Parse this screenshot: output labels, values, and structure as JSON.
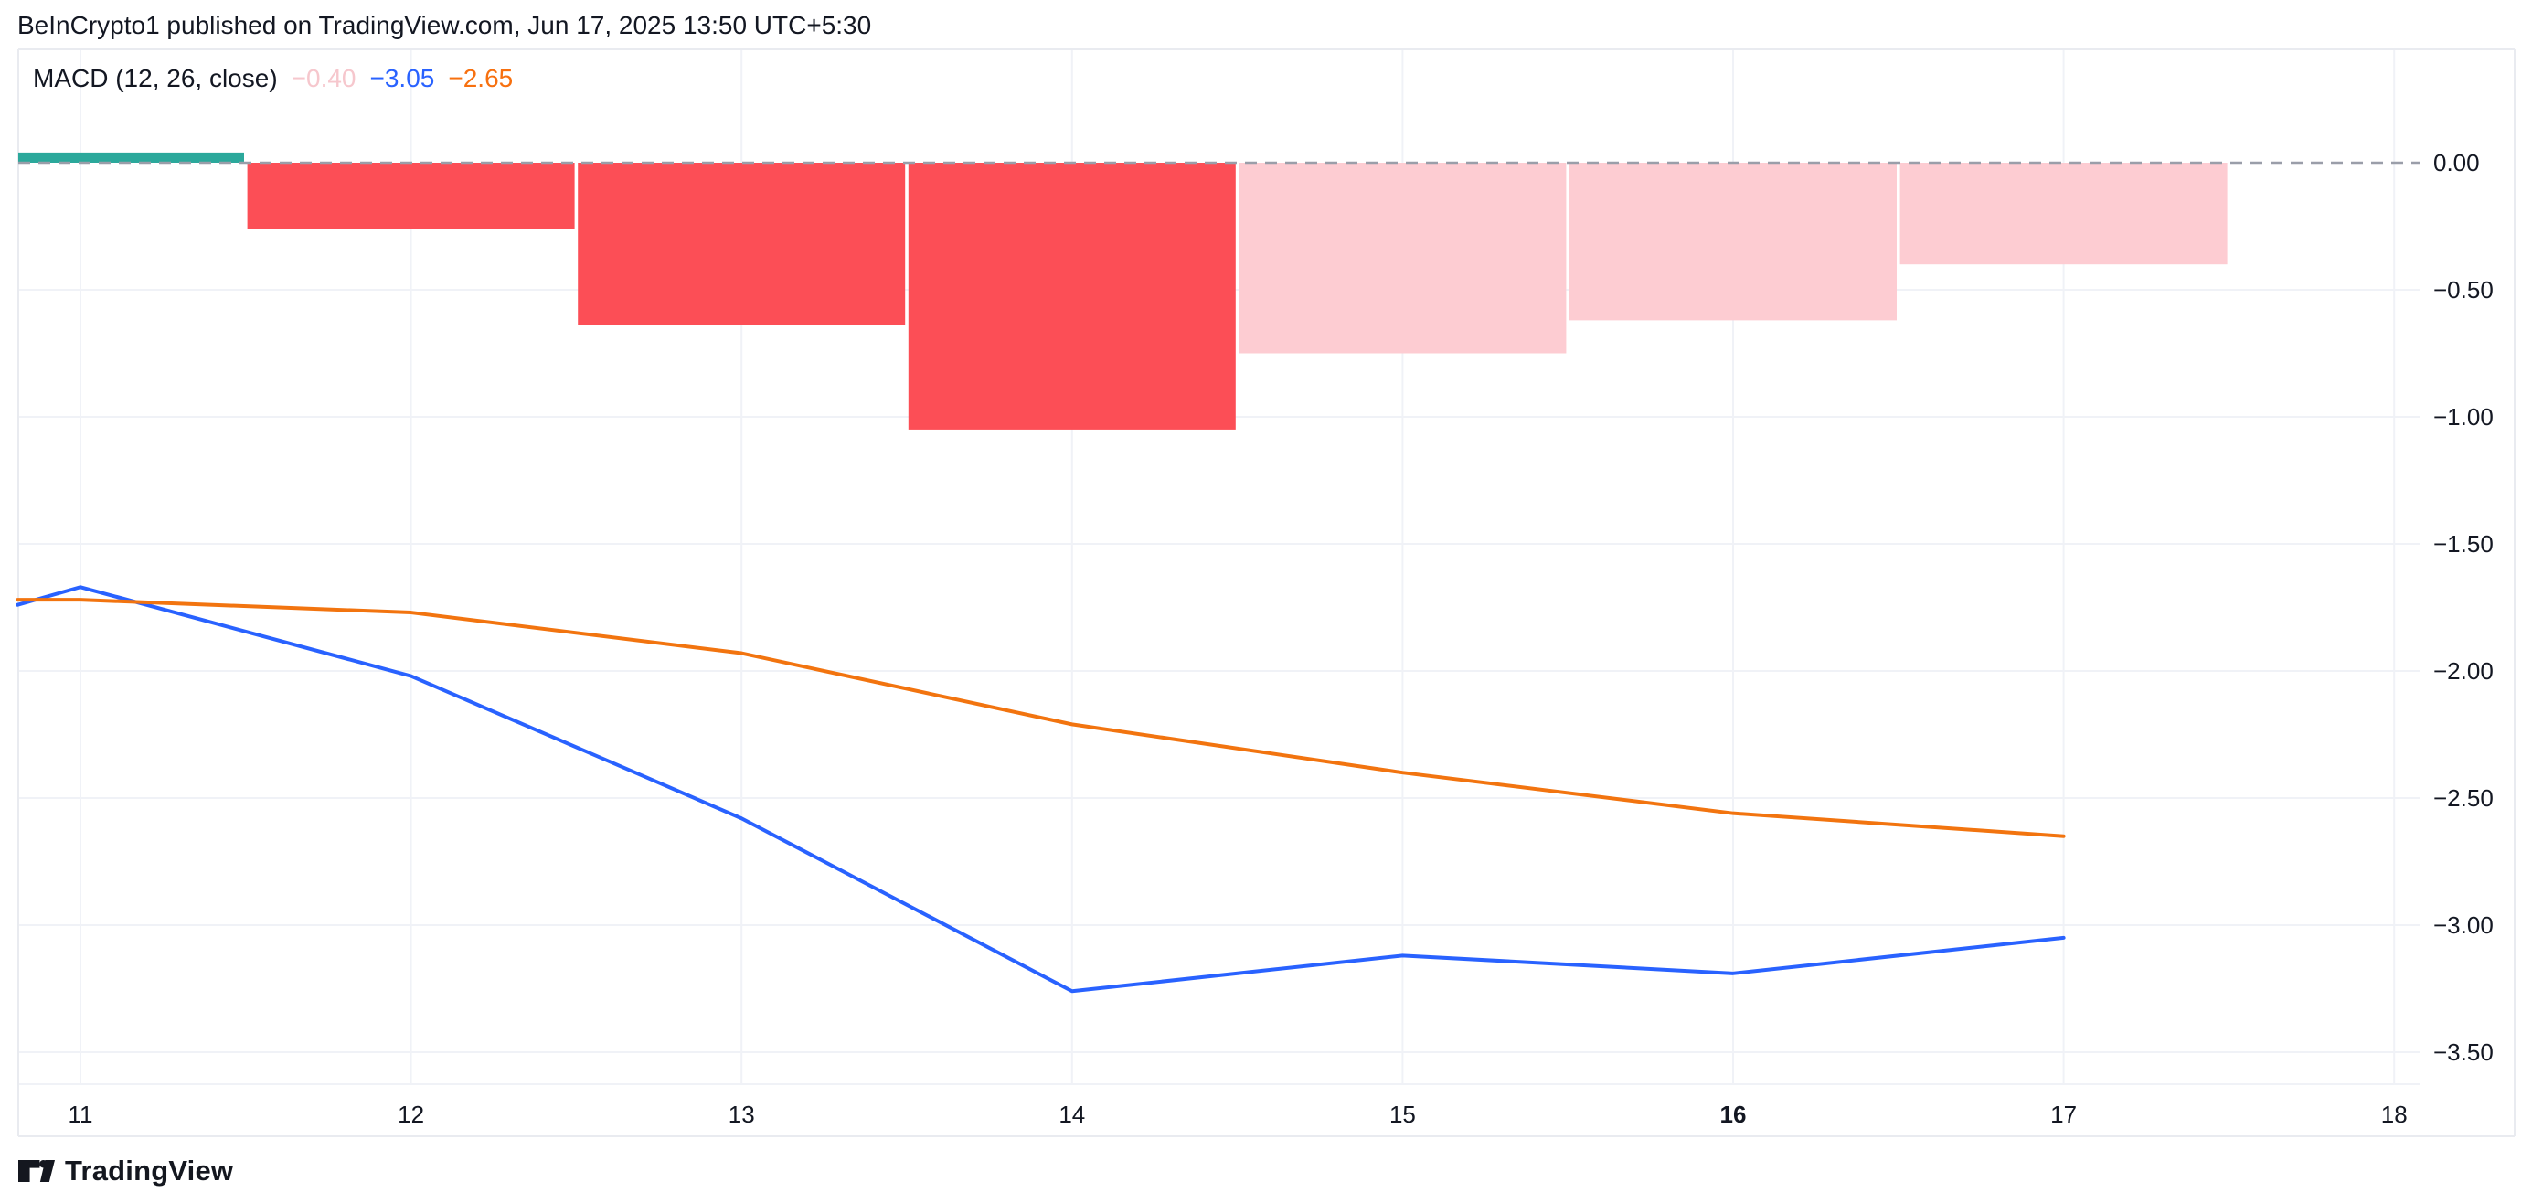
{
  "header": {
    "attribution": "BeInCrypto1 published on TradingView.com, Jun 17, 2025 13:50 UTC+5:30"
  },
  "indicator": {
    "label": "MACD (12, 26, close)",
    "values": [
      {
        "series": "histogram",
        "text": "−0.40",
        "color": "#f6c7cd"
      },
      {
        "series": "macd",
        "text": "−3.05",
        "color": "#2962ff"
      },
      {
        "series": "signal",
        "text": "−2.65",
        "color": "#f7700f"
      }
    ]
  },
  "brand": {
    "name": "TradingView"
  },
  "chart_data": {
    "type": "bar",
    "subtype": "MACD indicator panel: histogram bars with MACD and signal lines",
    "title": "MACD (12, 26, close)",
    "categories": [
      11,
      12,
      13,
      14,
      15,
      16,
      17
    ],
    "values": [
      0.04,
      -0.26,
      -0.64,
      -1.05,
      -0.75,
      -0.62,
      -0.4
    ],
    "bar_colors": [
      "#2ba89b",
      "#fc4e56",
      "#fc4e56",
      "#fc4e56",
      "#fdccd2",
      "#fdccd2",
      "#fdccd2"
    ],
    "bar_color_meaning": {
      "#2ba89b": "histogram above zero",
      "#fc4e56": "histogram below zero, falling",
      "#fdccd2": "histogram below zero, rising"
    },
    "series": [
      {
        "name": "MACD",
        "color": "#2962ff",
        "x": [
          10.81,
          11,
          12,
          13,
          14,
          15,
          16,
          17
        ],
        "values": [
          -1.74,
          -1.67,
          -2.02,
          -2.58,
          -3.26,
          -3.12,
          -3.19,
          -3.05
        ]
      },
      {
        "name": "Signal",
        "color": "#f2740f",
        "x": [
          10.81,
          11,
          12,
          13,
          14,
          15,
          16,
          17
        ],
        "values": [
          -1.72,
          -1.72,
          -1.77,
          -1.93,
          -2.21,
          -2.4,
          -2.56,
          -2.65
        ]
      }
    ],
    "xlabel": "",
    "ylabel": "",
    "ylim": [
      -3.62,
      0.44
    ],
    "grid": true,
    "zero_line": "dashed",
    "y_axis": {
      "side": "right",
      "ticks": [
        {
          "label": "0.00",
          "value": 0.0
        },
        {
          "label": "−0.50",
          "value": -0.5
        },
        {
          "label": "−1.00",
          "value": -1.0
        },
        {
          "label": "−1.50",
          "value": -1.5
        },
        {
          "label": "−2.00",
          "value": -2.0
        },
        {
          "label": "−2.50",
          "value": -2.5
        },
        {
          "label": "−3.00",
          "value": -3.0
        },
        {
          "label": "−3.50",
          "value": -3.5
        }
      ]
    },
    "x_axis": {
      "ticks": [
        {
          "label": "11",
          "day": 11,
          "bold": false
        },
        {
          "label": "12",
          "day": 12,
          "bold": false
        },
        {
          "label": "13",
          "day": 13,
          "bold": false
        },
        {
          "label": "14",
          "day": 14,
          "bold": false
        },
        {
          "label": "15",
          "day": 15,
          "bold": false
        },
        {
          "label": "16",
          "day": 16,
          "bold": true
        },
        {
          "label": "17",
          "day": 17,
          "bold": false
        },
        {
          "label": "18",
          "day": 18,
          "bold": false
        }
      ]
    },
    "style": {
      "grid_color": "#f0f2f7",
      "frame_color": "#e9ebf0",
      "zero_dash_color": "#9a9ea9",
      "text_color": "#131722",
      "background": "#ffffff"
    }
  }
}
